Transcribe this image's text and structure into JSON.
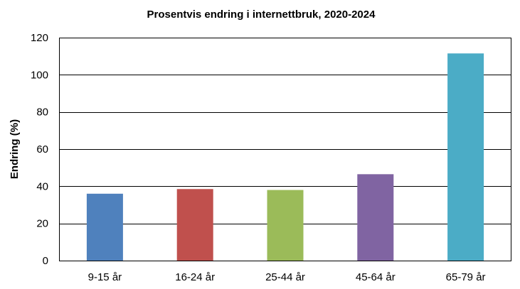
{
  "chart_data": {
    "type": "bar",
    "title": "Prosentvis endring i internettbruk, 2020-2024",
    "xlabel": "",
    "ylabel": "Endring (%)",
    "ylim": [
      0,
      120
    ],
    "yticks": [
      0,
      20,
      40,
      60,
      80,
      100,
      120
    ],
    "grid": true,
    "legend": "none",
    "categories": [
      "9-15 år",
      "16-24 år",
      "25-44 år",
      "45-64 år",
      "65-79 år"
    ],
    "values": [
      36,
      38.5,
      38,
      46.5,
      111.5
    ],
    "colors": [
      "#4F81BD",
      "#C0504D",
      "#9BBB59",
      "#8064A2",
      "#4BACC6"
    ]
  }
}
